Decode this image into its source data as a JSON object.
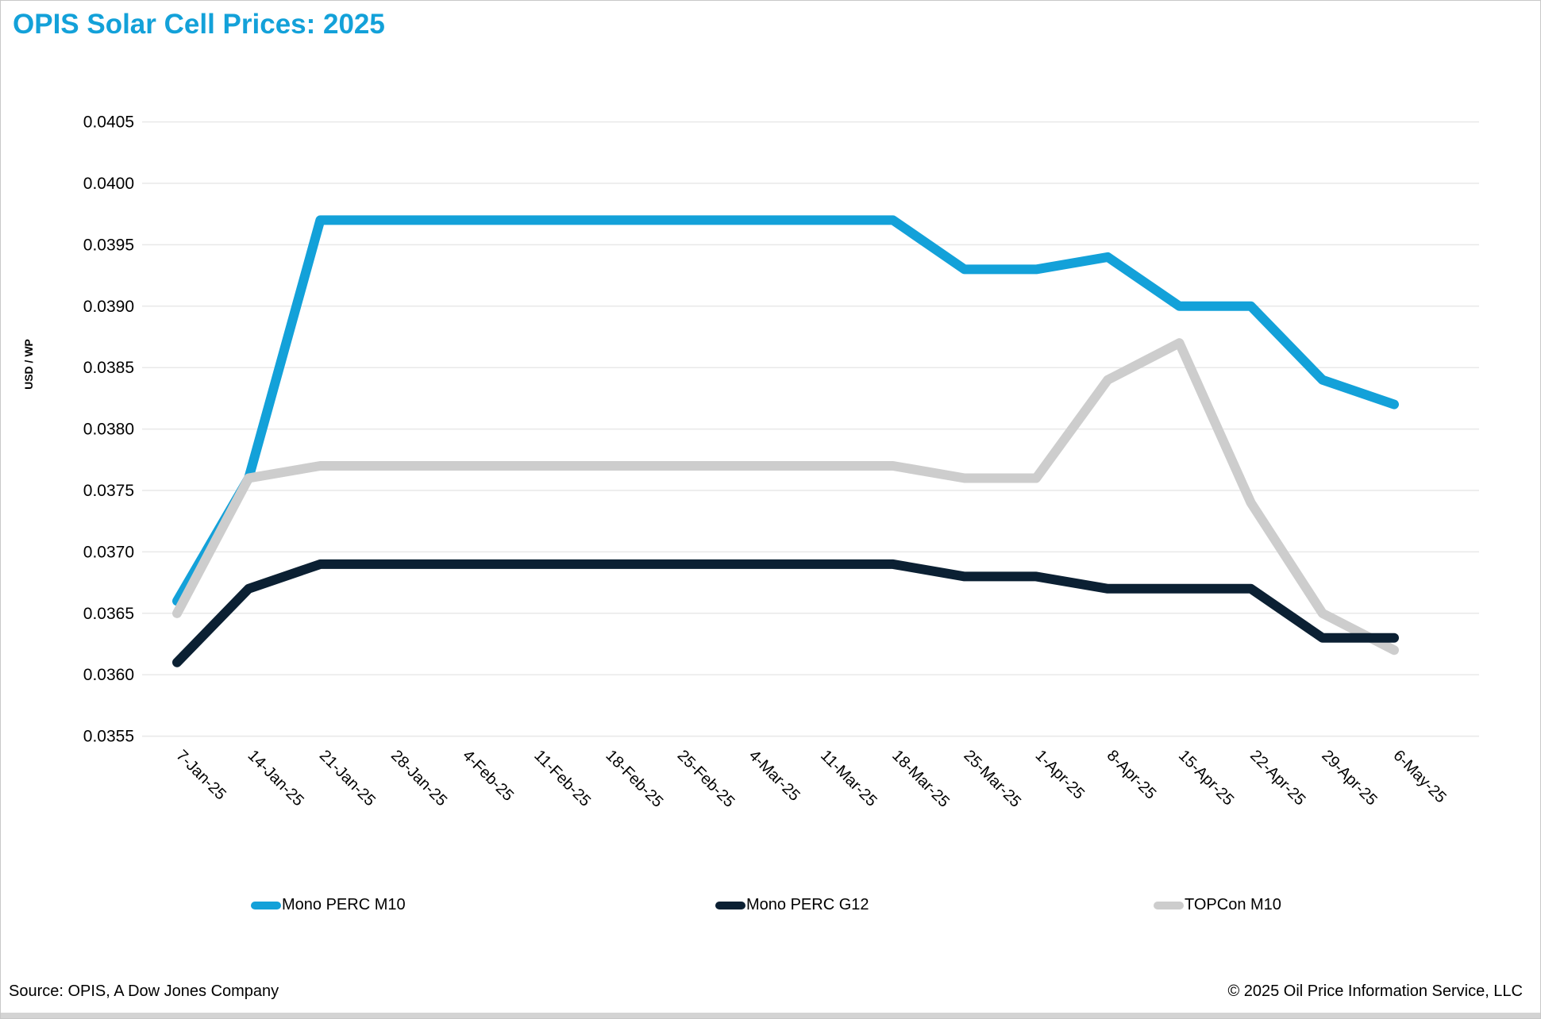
{
  "header": {
    "title": "OPIS Solar Cell Prices: 2025"
  },
  "colors": {
    "accent": "#13a1d9",
    "series_mono_perc_m10": "#13a1d9",
    "series_mono_perc_g12": "#0b2033",
    "series_topcon_m10": "#cdcdcd",
    "gridline": "#e9e9e9",
    "axis_text": "#000000",
    "page_border": "#c8c8c8",
    "bottom_bar": "#d4d4d4"
  },
  "chart_data": {
    "type": "line",
    "title": "OPIS Solar Cell Prices: 2025",
    "xlabel": "",
    "ylabel": "USD / WP",
    "ylim": [
      0.0355,
      0.0405
    ],
    "ytick_step": 0.0005,
    "ytick_decimals": 4,
    "grid": "horizontal",
    "legend_position": "bottom",
    "categories": [
      "7-Jan-25",
      "14-Jan-25",
      "21-Jan-25",
      "28-Jan-25",
      "4-Feb-25",
      "11-Feb-25",
      "18-Feb-25",
      "25-Feb-25",
      "4-Mar-25",
      "11-Mar-25",
      "18-Mar-25",
      "25-Mar-25",
      "1-Apr-25",
      "8-Apr-25",
      "15-Apr-25",
      "22-Apr-25",
      "29-Apr-25",
      "6-May-25"
    ],
    "series": [
      {
        "name": "Mono PERC M10",
        "color": "#13a1d9",
        "values": [
          0.0366,
          0.0376,
          0.0397,
          0.0397,
          0.0397,
          0.0397,
          0.0397,
          0.0397,
          0.0397,
          0.0397,
          0.0397,
          0.0393,
          0.0393,
          0.0394,
          0.039,
          0.039,
          0.0384,
          0.0382
        ]
      },
      {
        "name": "Mono PERC G12",
        "color": "#0b2033",
        "values": [
          0.0361,
          0.0367,
          0.0369,
          0.0369,
          0.0369,
          0.0369,
          0.0369,
          0.0369,
          0.0369,
          0.0369,
          0.0369,
          0.0368,
          0.0368,
          0.0367,
          0.0367,
          0.0367,
          0.0363,
          0.0363
        ]
      },
      {
        "name": "TOPCon M10",
        "color": "#cdcdcd",
        "values": [
          0.0365,
          0.0376,
          0.0377,
          0.0377,
          0.0377,
          0.0377,
          0.0377,
          0.0377,
          0.0377,
          0.0377,
          0.0377,
          0.0376,
          0.0376,
          0.0384,
          0.0387,
          0.0374,
          0.0365,
          0.0362
        ]
      }
    ],
    "draw_order": [
      0,
      2,
      1
    ]
  },
  "footer": {
    "source": "Source: OPIS, A Dow Jones Company",
    "copyright": "© 2025 Oil Price Information Service, LLC"
  }
}
